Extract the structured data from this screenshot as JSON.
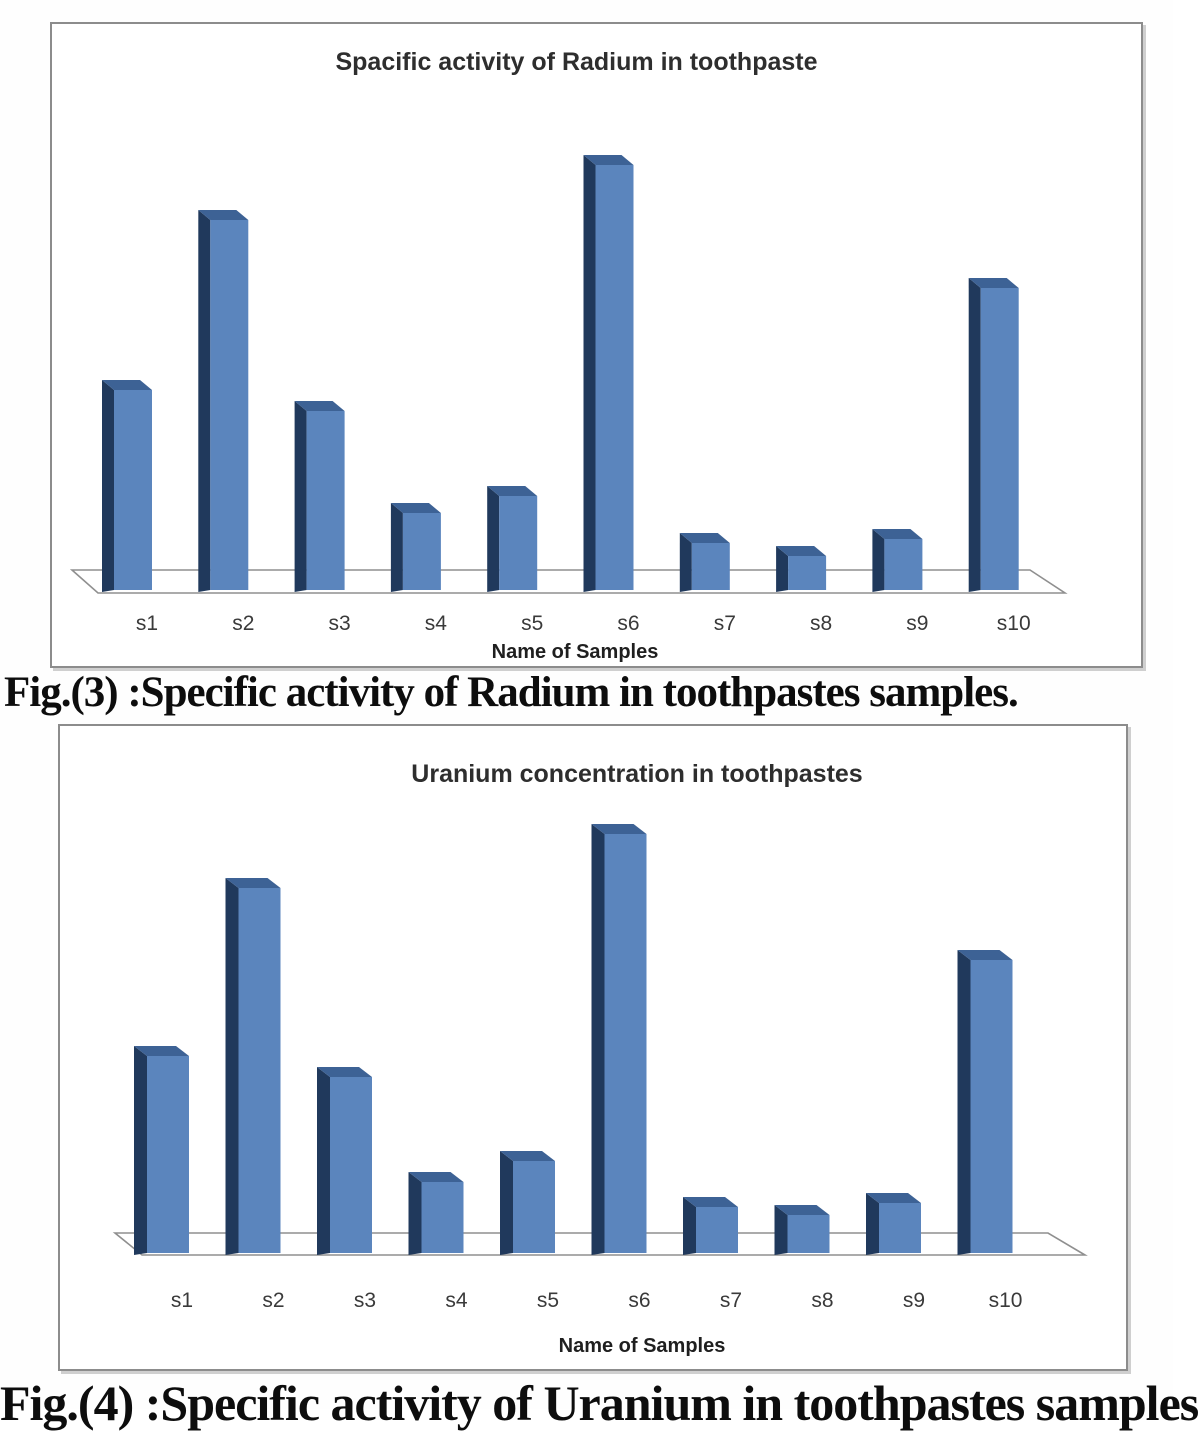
{
  "chart_data": [
    {
      "type": "bar",
      "projection": "3d",
      "title": "Spacific activity of Radium in toothpaste",
      "xlabel": "Name of Samples",
      "ylabel": "",
      "caption": "Fig.(3) :Specific activity of Radium in toothpastes samples.",
      "categories": [
        "s1",
        "s2",
        "s3",
        "s4",
        "s5",
        "s6",
        "s7",
        "s8",
        "s9",
        "s10"
      ],
      "values": [
        47,
        87,
        42,
        18,
        22,
        100,
        11,
        8,
        12,
        71
      ],
      "values_unit": "percent of tallest bar (no value-axis labels shown in chart)",
      "value_axis_visible": false,
      "gridlines": false,
      "legend": false,
      "bar_face_color": "#5b85bd",
      "bar_side_color": "#20395c",
      "bar_top_color": "#3d6295",
      "floor_stroke_color": "#8f8f8f"
    },
    {
      "type": "bar",
      "projection": "3d",
      "title": "Uranium concentration in toothpastes",
      "xlabel": "Name of Samples",
      "ylabel": "",
      "caption": "Fig.(4) :Specific activity of Uranium in toothpastes samples",
      "categories": [
        "s1",
        "s2",
        "s3",
        "s4",
        "s5",
        "s6",
        "s7",
        "s8",
        "s9",
        "s10"
      ],
      "values": [
        47,
        87,
        42,
        17,
        22,
        100,
        11,
        9,
        12,
        70
      ],
      "values_unit": "percent of tallest bar (no value-axis labels shown in chart)",
      "value_axis_visible": false,
      "gridlines": false,
      "legend": false,
      "bar_face_color": "#5b85bd",
      "bar_side_color": "#20395c",
      "bar_top_color": "#3d6295",
      "floor_stroke_color": "#8f8f8f"
    }
  ]
}
